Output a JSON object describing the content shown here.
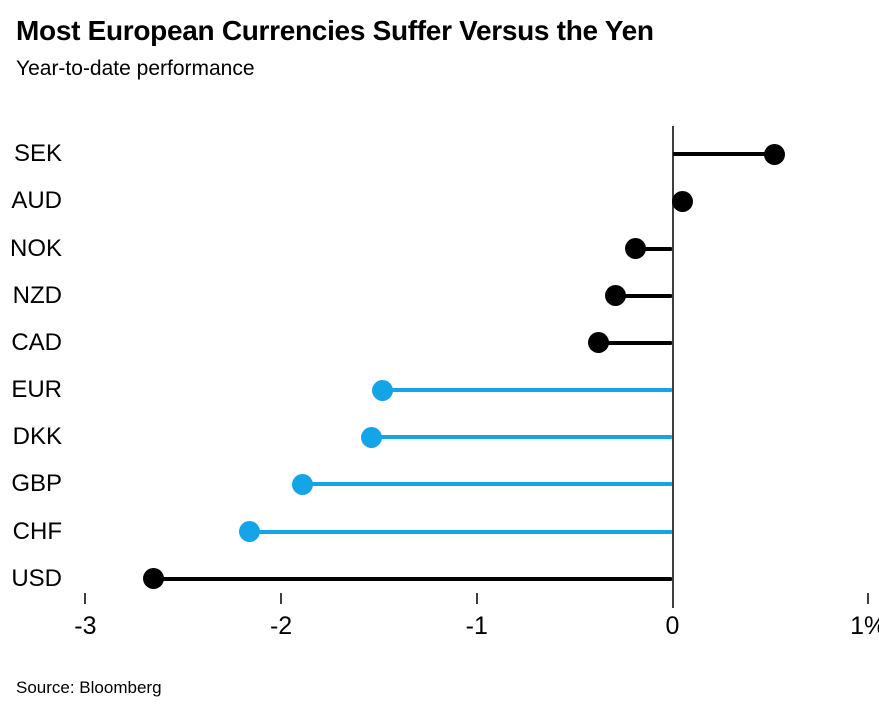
{
  "header": {
    "title": "Most European Currencies Suffer Versus the Yen",
    "subtitle": "Year-to-date performance"
  },
  "footer": {
    "source": "Source: Bloomberg"
  },
  "colors": {
    "highlight_blue": "#14a5e8",
    "default_black": "#000000",
    "axis_gray": "#3f3f3f",
    "background": "#ffffff"
  },
  "chart_data": {
    "type": "bar",
    "style": "horizontal-lollipop",
    "title": "Most European Currencies Suffer Versus the Yen",
    "subtitle": "Year-to-date performance",
    "source": "Source: Bloomberg",
    "xlabel": "",
    "ylabel": "",
    "unit": "%",
    "grid": false,
    "legend": false,
    "baseline": 0,
    "xlim": [
      -3.3,
      1.1
    ],
    "categories": [
      "SEK",
      "AUD",
      "NOK",
      "NZD",
      "CAD",
      "EUR",
      "DKK",
      "GBP",
      "CHF",
      "USD"
    ],
    "values": [
      0.52,
      0.05,
      -0.19,
      -0.29,
      -0.38,
      -1.48,
      -1.54,
      -1.89,
      -2.16,
      -2.65
    ],
    "point_colors": [
      "#000000",
      "#000000",
      "#000000",
      "#000000",
      "#000000",
      "#14a5e8",
      "#14a5e8",
      "#14a5e8",
      "#14a5e8",
      "#000000"
    ],
    "x_ticks": [
      {
        "value": -3,
        "label": "-3"
      },
      {
        "value": -2,
        "label": "-2"
      },
      {
        "value": -1,
        "label": "-1"
      },
      {
        "value": 0,
        "label": "0"
      },
      {
        "value": 1,
        "label": "1%"
      }
    ]
  }
}
